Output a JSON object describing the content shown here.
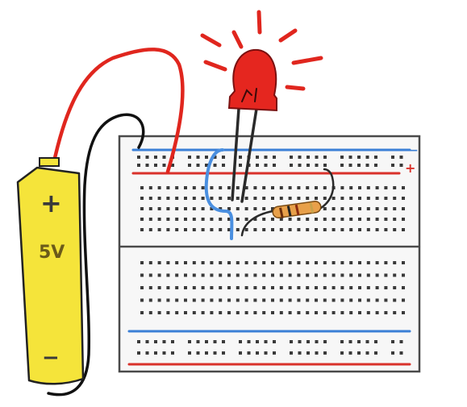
{
  "battery": {
    "plus_label": "+",
    "voltage_label": "5V",
    "minus_label": "−",
    "color": "#f5e43a"
  },
  "breadboard": {
    "rail_plus_label": "+",
    "rail_minus_label": "−",
    "top_positive_rail_color": "#d9322b",
    "top_negative_rail_color": "#3b7fd6",
    "bottom_negative_rail_color": "#3b7fd6",
    "bottom_positive_rail_color": "#d9322b"
  },
  "led": {
    "color": "#e5261f",
    "state": "lit"
  },
  "resistor": {
    "body_color": "#e8a04a"
  },
  "wires": {
    "positive_color": "#e0261e",
    "ground_color": "#111111",
    "jumper_color": "#4a8fe0"
  }
}
